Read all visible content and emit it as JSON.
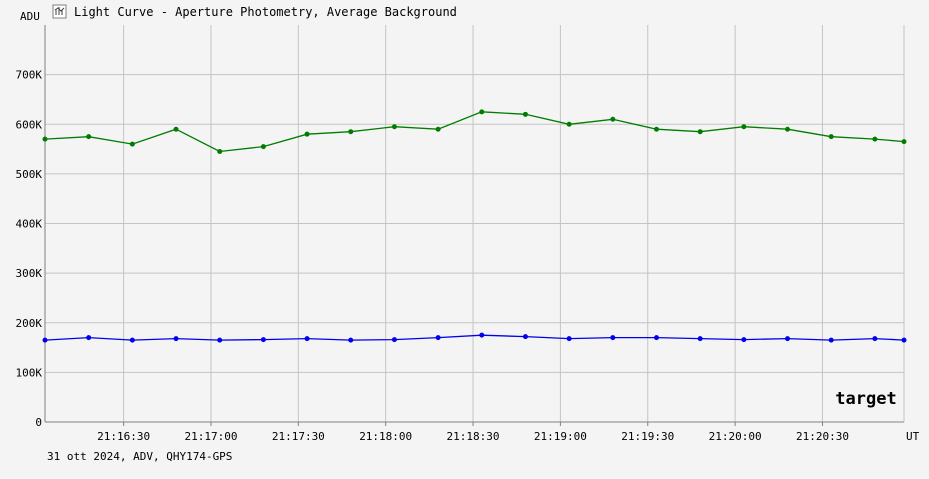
{
  "header": {
    "ylabel": "ADU",
    "title": "Light Curve - Aperture Photometry, Average Background",
    "icon": "chart-icon"
  },
  "footer": {
    "info": "31 ott 2024, ADV, QHY174-GPS"
  },
  "colors": {
    "background": "#f4f4f4",
    "plot_background": "#f4f4f4",
    "grid": "#c4c4c4",
    "axis": "#808080",
    "text": "#000000",
    "green_series": "#007c00",
    "blue_series": "#0000ee"
  },
  "chart_data": {
    "type": "line",
    "title": "Light Curve - Aperture Photometry, Average Background",
    "xlabel": "UT",
    "ylabel": "ADU",
    "xlim": [
      "21:16:03",
      "21:20:58"
    ],
    "ylim": [
      0,
      800000
    ],
    "grid": true,
    "yticks": [
      {
        "value": 0,
        "label": "0"
      },
      {
        "value": 100000,
        "label": "100K"
      },
      {
        "value": 200000,
        "label": "200K"
      },
      {
        "value": 300000,
        "label": "300K"
      },
      {
        "value": 400000,
        "label": "400K"
      },
      {
        "value": 500000,
        "label": "500K"
      },
      {
        "value": 600000,
        "label": "600K"
      },
      {
        "value": 700000,
        "label": "700K"
      }
    ],
    "xticks": [
      {
        "value": "21:16:30",
        "label": "21:16:30"
      },
      {
        "value": "21:17:00",
        "label": "21:17:00"
      },
      {
        "value": "21:17:30",
        "label": "21:17:30"
      },
      {
        "value": "21:18:00",
        "label": "21:18:00"
      },
      {
        "value": "21:18:30",
        "label": "21:18:30"
      },
      {
        "value": "21:19:00",
        "label": "21:19:00"
      },
      {
        "value": "21:19:30",
        "label": "21:19:30"
      },
      {
        "value": "21:20:00",
        "label": "21:20:00"
      },
      {
        "value": "21:20:30",
        "label": "21:20:30"
      }
    ],
    "series": [
      {
        "color": "#007c00",
        "x": [
          "21:16:03",
          "21:16:18",
          "21:16:33",
          "21:16:48",
          "21:17:03",
          "21:17:18",
          "21:17:33",
          "21:17:48",
          "21:18:03",
          "21:18:18",
          "21:18:33",
          "21:18:48",
          "21:19:03",
          "21:19:18",
          "21:19:33",
          "21:19:48",
          "21:20:03",
          "21:20:18",
          "21:20:33",
          "21:20:48",
          "21:20:58"
        ],
        "values": [
          570000,
          575000,
          560000,
          590000,
          545000,
          555000,
          580000,
          585000,
          595000,
          590000,
          625000,
          620000,
          600000,
          610000,
          590000,
          585000,
          595000,
          590000,
          575000,
          570000,
          565000
        ]
      },
      {
        "color": "#0000ee",
        "x": [
          "21:16:03",
          "21:16:18",
          "21:16:33",
          "21:16:48",
          "21:17:03",
          "21:17:18",
          "21:17:33",
          "21:17:48",
          "21:18:03",
          "21:18:18",
          "21:18:33",
          "21:18:48",
          "21:19:03",
          "21:19:18",
          "21:19:33",
          "21:19:48",
          "21:20:03",
          "21:20:18",
          "21:20:33",
          "21:20:48",
          "21:20:58"
        ],
        "values": [
          165000,
          170000,
          165000,
          168000,
          165000,
          166000,
          168000,
          165000,
          166000,
          170000,
          175000,
          172000,
          168000,
          170000,
          170000,
          168000,
          166000,
          168000,
          165000,
          168000,
          165000
        ]
      }
    ],
    "annotations": [
      "target"
    ]
  }
}
